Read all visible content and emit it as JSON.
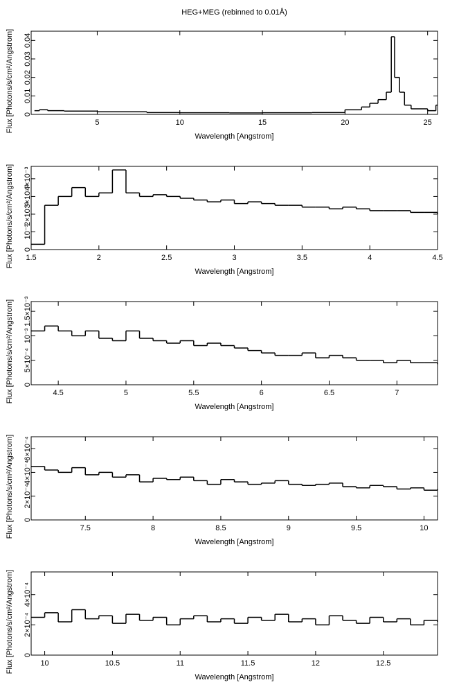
{
  "chart_data": [
    {
      "type": "line",
      "title": "HEG+MEG (rebinned to 0.01Å)",
      "xlabel": "Wavelength [Angstrom]",
      "ylabel": "Flux [Photons/s/cm²/Angstrom]",
      "x": [
        1.2,
        1.5,
        2,
        3,
        5,
        8,
        10,
        13,
        15,
        18,
        20,
        21,
        21.5,
        22,
        22.5,
        22.8,
        23,
        23.3,
        23.6,
        24,
        25,
        25.5
      ],
      "values": [
        0.002,
        0.0025,
        0.002,
        0.0018,
        0.0014,
        0.001,
        0.0009,
        0.0008,
        0.0009,
        0.001,
        0.0025,
        0.004,
        0.006,
        0.008,
        0.012,
        0.042,
        0.02,
        0.012,
        0.005,
        0.003,
        0.002,
        0.005
      ],
      "color": "#000000",
      "xlim": [
        1,
        25.6
      ],
      "ylim": [
        0,
        0.045
      ],
      "xticks": [
        5,
        10,
        15,
        20,
        25
      ],
      "yticks": [
        0,
        0.01,
        0.02,
        0.03,
        0.04
      ]
    },
    {
      "type": "line",
      "xlabel": "Wavelength [Angstrom]",
      "ylabel": "Flux [Photons/s/cm²/Angstrom]",
      "x": [
        1.5,
        1.6,
        1.7,
        1.8,
        1.9,
        2.0,
        2.1,
        2.2,
        2.3,
        2.4,
        2.5,
        2.6,
        2.7,
        2.8,
        2.9,
        3.0,
        3.1,
        3.2,
        3.3,
        3.4,
        3.5,
        3.6,
        3.7,
        3.8,
        3.9,
        4.0,
        4.1,
        4.2,
        4.3,
        4.4,
        4.5
      ],
      "values": [
        0.0003,
        0.0025,
        0.003,
        0.0035,
        0.003,
        0.0032,
        0.0045,
        0.0032,
        0.003,
        0.0031,
        0.003,
        0.0029,
        0.0028,
        0.0027,
        0.0028,
        0.0026,
        0.0027,
        0.0026,
        0.0025,
        0.0025,
        0.0024,
        0.0024,
        0.0023,
        0.0024,
        0.0023,
        0.0022,
        0.0022,
        0.0022,
        0.0021,
        0.0021,
        0.002
      ],
      "color": "#000000",
      "xlim": [
        1.5,
        4.5
      ],
      "ylim": [
        0,
        0.0047
      ],
      "xticks": [
        1.5,
        2,
        2.5,
        3,
        3.5,
        4,
        4.5
      ],
      "yticks": [
        0,
        {
          "value": 0.001,
          "label": "10⁻³"
        },
        {
          "value": 0.002,
          "label": "2×10⁻³"
        },
        {
          "value": 0.003,
          "label": "3×10⁻³"
        },
        {
          "value": 0.004,
          "label": "4×10⁻³"
        }
      ]
    },
    {
      "type": "line",
      "xlabel": "Wavelength [Angstrom]",
      "ylabel": "Flux [Photons/s/cm²/Angstrom]",
      "x": [
        4.3,
        4.4,
        4.5,
        4.6,
        4.7,
        4.8,
        4.9,
        5.0,
        5.1,
        5.2,
        5.3,
        5.4,
        5.5,
        5.6,
        5.7,
        5.8,
        5.9,
        6.0,
        6.1,
        6.2,
        6.3,
        6.4,
        6.5,
        6.6,
        6.7,
        6.8,
        6.9,
        7.0,
        7.1,
        7.2,
        7.3
      ],
      "values": [
        0.0011,
        0.0012,
        0.0011,
        0.001,
        0.0011,
        0.00095,
        0.0009,
        0.0011,
        0.00095,
        0.0009,
        0.00085,
        0.0009,
        0.0008,
        0.00085,
        0.0008,
        0.00075,
        0.0007,
        0.00065,
        0.0006,
        0.0006,
        0.00065,
        0.00055,
        0.0006,
        0.00055,
        0.0005,
        0.0005,
        0.00045,
        0.0005,
        0.00045,
        0.00045,
        0.00042
      ],
      "color": "#000000",
      "xlim": [
        4.3,
        7.3
      ],
      "ylim": [
        0,
        0.0017
      ],
      "xticks": [
        4.5,
        5,
        5.5,
        6,
        6.5,
        7
      ],
      "yticks": [
        0,
        {
          "value": 0.0005,
          "label": "5×10⁻⁴"
        },
        {
          "value": 0.001,
          "label": "10⁻³"
        },
        {
          "value": 0.0015,
          "label": "1.5×10⁻³"
        }
      ]
    },
    {
      "type": "line",
      "xlabel": "Wavelength [Angstrom]",
      "ylabel": "Flux [Photons/s/cm²/Angstrom]",
      "x": [
        7.1,
        7.2,
        7.3,
        7.4,
        7.5,
        7.6,
        7.7,
        7.8,
        7.9,
        8.0,
        8.1,
        8.2,
        8.3,
        8.4,
        8.5,
        8.6,
        8.7,
        8.8,
        8.9,
        9.0,
        9.1,
        9.2,
        9.3,
        9.4,
        9.5,
        9.6,
        9.7,
        9.8,
        9.9,
        10.0,
        10.1
      ],
      "values": [
        0.00045,
        0.00042,
        0.0004,
        0.00044,
        0.00038,
        0.0004,
        0.00036,
        0.00038,
        0.00032,
        0.00035,
        0.00034,
        0.00036,
        0.00033,
        0.0003,
        0.00034,
        0.00032,
        0.0003,
        0.00031,
        0.00033,
        0.0003,
        0.00029,
        0.0003,
        0.00031,
        0.00028,
        0.00027,
        0.00029,
        0.00028,
        0.00026,
        0.00027,
        0.00025,
        0.00026
      ],
      "color": "#000000",
      "xlim": [
        7.1,
        10.1
      ],
      "ylim": [
        0,
        0.0007
      ],
      "xticks": [
        7.5,
        8,
        8.5,
        9,
        9.5,
        10
      ],
      "yticks": [
        0,
        {
          "value": 0.0002,
          "label": "2×10⁻⁴"
        },
        {
          "value": 0.0004,
          "label": "4×10⁻⁴"
        },
        {
          "value": 0.0006,
          "label": "6×10⁻⁴"
        }
      ]
    },
    {
      "type": "line",
      "xlabel": "Wavelength [Angstrom]",
      "ylabel": "Flux [Photons/s/cm²/Angstrom]",
      "x": [
        9.9,
        10.0,
        10.1,
        10.2,
        10.3,
        10.4,
        10.5,
        10.6,
        10.7,
        10.8,
        10.9,
        11.0,
        11.1,
        11.2,
        11.3,
        11.4,
        11.5,
        11.6,
        11.7,
        11.8,
        11.9,
        12.0,
        12.1,
        12.2,
        12.3,
        12.4,
        12.5,
        12.6,
        12.7,
        12.8,
        12.9
      ],
      "values": [
        0.00025,
        0.00028,
        0.00022,
        0.0003,
        0.00024,
        0.00026,
        0.00021,
        0.00027,
        0.00023,
        0.00025,
        0.0002,
        0.00024,
        0.00026,
        0.00022,
        0.00024,
        0.00021,
        0.00025,
        0.00023,
        0.00027,
        0.00022,
        0.00024,
        0.0002,
        0.00026,
        0.00023,
        0.00021,
        0.00025,
        0.00022,
        0.00024,
        0.0002,
        0.00023,
        0.00022
      ],
      "color": "#000000",
      "xlim": [
        9.9,
        12.9
      ],
      "ylim": [
        0,
        0.00055
      ],
      "xticks": [
        10,
        10.5,
        11,
        11.5,
        12,
        12.5
      ],
      "yticks": [
        0,
        {
          "value": 0.0002,
          "label": "2×10⁻⁴"
        },
        {
          "value": 0.0004,
          "label": "4×10⁻⁴"
        }
      ]
    }
  ]
}
